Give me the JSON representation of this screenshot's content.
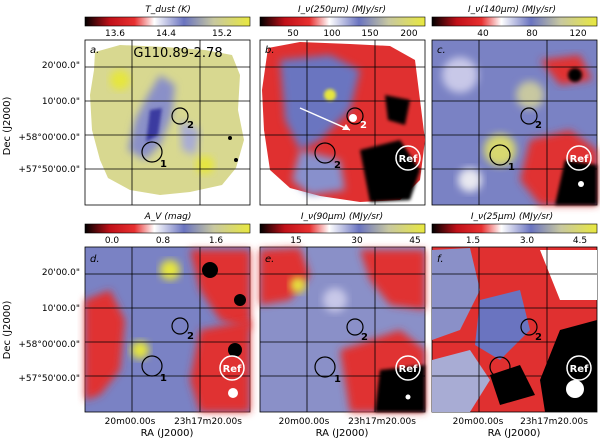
{
  "figure": {
    "dec_axis_label": "Dec (J2000)",
    "ra_axis_label": "RA (J2000)",
    "dec_ticks": [
      "20'00.0\"",
      "10'00.0\"",
      "+58°00'00.0\"",
      "+57°50'00.0\""
    ],
    "ra_ticks": [
      "20m00.00s",
      "23h17m20.00s"
    ],
    "field_name": "G110.89-2.78",
    "ref_label": "Ref",
    "clump_labels": [
      "1",
      "2"
    ],
    "colors": {
      "black": "#000000",
      "red": "#e0202a",
      "blue": "#5a64b4",
      "lightblue": "#a0a8d8",
      "white": "#ffffff",
      "khaki": "#d8d890",
      "yellow": "#e6e63c"
    }
  },
  "panels": [
    {
      "letter": "a.",
      "colorbar_label": "T_dust (K)",
      "colorbar_ticks": [
        "13.6",
        "14.4",
        "15.2"
      ]
    },
    {
      "letter": "b.",
      "colorbar_label": "I_ν(250μm) (MJy/sr)",
      "colorbar_ticks": [
        "50",
        "100",
        "150",
        "200"
      ]
    },
    {
      "letter": "c.",
      "colorbar_label": "I_ν(140μm) (MJy/sr)",
      "colorbar_ticks": [
        "40",
        "80",
        "120"
      ]
    },
    {
      "letter": "d.",
      "colorbar_label": "A_V (mag)",
      "colorbar_ticks": [
        "0.0",
        "0.8",
        "1.6"
      ]
    },
    {
      "letter": "e.",
      "colorbar_label": "I_ν(90μm) (MJy/sr)",
      "colorbar_ticks": [
        "15",
        "30",
        "45"
      ]
    },
    {
      "letter": "f.",
      "colorbar_label": "I_ν(25μm) (MJy/sr)",
      "colorbar_ticks": [
        "1.5",
        "3.0",
        "4.5"
      ]
    }
  ]
}
